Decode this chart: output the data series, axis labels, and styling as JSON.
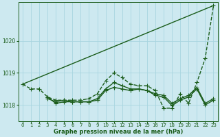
{
  "title": "Graphe pression niveau de la mer (hPa)",
  "background_color": "#cde9f0",
  "grid_color": "#a8d5e0",
  "line_color": "#1a5c1a",
  "xlim": [
    -0.5,
    23.5
  ],
  "ylim": [
    1017.5,
    1021.2
  ],
  "yticks": [
    1018,
    1019,
    1020
  ],
  "xticks": [
    0,
    1,
    2,
    3,
    4,
    5,
    6,
    7,
    8,
    9,
    10,
    11,
    12,
    13,
    14,
    15,
    16,
    17,
    18,
    19,
    20,
    21,
    22,
    23
  ],
  "series": [
    {
      "x": [
        0,
        1,
        2,
        3,
        4,
        5,
        6,
        7,
        8,
        9,
        10,
        11,
        12,
        13,
        14,
        15,
        16,
        17,
        18,
        19,
        20,
        21,
        22,
        23
      ],
      "y": [
        1018.65,
        1018.5,
        1018.5,
        1018.25,
        1018.15,
        1018.15,
        1018.15,
        1018.15,
        1018.2,
        1018.35,
        1018.75,
        1019.0,
        1018.85,
        1018.65,
        1018.6,
        1018.6,
        1018.45,
        1017.9,
        1017.9,
        1018.35,
        1018.05,
        1018.7,
        1019.45,
        1021.1
      ],
      "marker": "+",
      "markersize": 4.0,
      "linewidth": 1.0,
      "linestyle": "--"
    },
    {
      "x": [
        3,
        4,
        5,
        6,
        7,
        8,
        9,
        10,
        11,
        12,
        13,
        14,
        15,
        16,
        17,
        18,
        19,
        20,
        21,
        22,
        23
      ],
      "y": [
        1018.2,
        1018.1,
        1018.15,
        1018.1,
        1018.1,
        1018.1,
        1018.2,
        1018.5,
        1018.7,
        1018.6,
        1018.5,
        1018.5,
        1018.45,
        1018.35,
        1018.3,
        1018.05,
        1018.2,
        1018.3,
        1018.55,
        1018.05,
        1018.2
      ],
      "marker": "+",
      "markersize": 4.0,
      "linewidth": 1.0,
      "linestyle": "-"
    },
    {
      "x": [
        3,
        4,
        5,
        6,
        7,
        8,
        9,
        10,
        11,
        12,
        13,
        14,
        15,
        16,
        17,
        18,
        19,
        20,
        21,
        22,
        23
      ],
      "y": [
        1018.25,
        1018.05,
        1018.1,
        1018.1,
        1018.1,
        1018.1,
        1018.15,
        1018.45,
        1018.55,
        1018.5,
        1018.45,
        1018.5,
        1018.45,
        1018.3,
        1018.25,
        1017.98,
        1018.15,
        1018.25,
        1018.5,
        1018.0,
        1018.15
      ],
      "marker": "+",
      "markersize": 4.0,
      "linewidth": 1.0,
      "linestyle": "-"
    },
    {
      "x": [
        0,
        23
      ],
      "y": [
        1018.65,
        1021.1
      ],
      "marker": null,
      "markersize": 0,
      "linewidth": 1.0,
      "linestyle": "-"
    }
  ]
}
